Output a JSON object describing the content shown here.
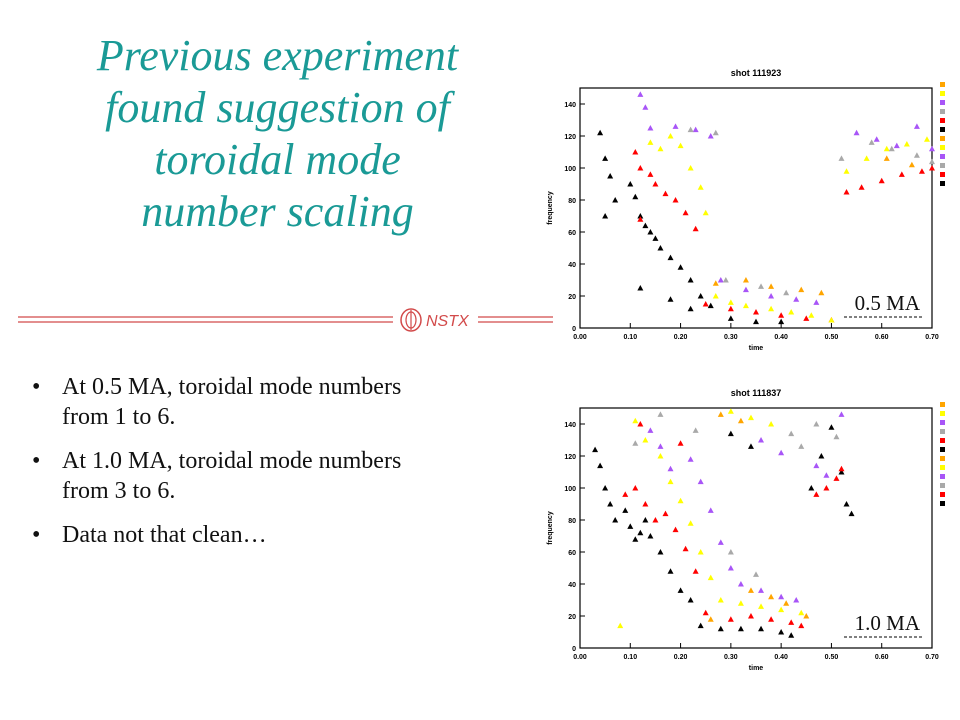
{
  "title": {
    "lines": [
      "Previous experiment",
      "found suggestion of",
      "toroidal mode",
      "number scaling"
    ]
  },
  "logo": {
    "text": "NSTX"
  },
  "bullets": [
    "At 0.5 MA, toroidal mode numbers from 1 to 6.",
    "At 1.0 MA, toroidal mode numbers from 3 to 6.",
    "Data not that clean…"
  ],
  "bullet_symbol": "•",
  "colors": {
    "title": "#1a9a96",
    "n1": "#000000",
    "n2": "#ff0000",
    "n3": "#ffff00",
    "n4": "#a855f7",
    "n5": "#a9a9a9",
    "n6": "#ffa500"
  },
  "chart_data": [
    {
      "type": "scatter",
      "title": "shot 111923",
      "annotation": "0.5 MA",
      "xlabel": "time",
      "ylabel": "frequency",
      "xlim": [
        0.0,
        0.7
      ],
      "ylim": [
        0,
        150
      ],
      "xticks": [
        "0.00",
        "0.10",
        "0.20",
        "0.30",
        "0.40",
        "0.50",
        "0.60",
        "0.70"
      ],
      "yticks": [
        "0",
        "20",
        "40",
        "60",
        "80",
        "100",
        "120",
        "140"
      ],
      "grid": false,
      "legend_position": "right",
      "legend_colors": [
        "#ffa500",
        "#ffff00",
        "#a855f7",
        "#a9a9a9",
        "#ff0000",
        "#000000",
        "#ffa500",
        "#ffff00",
        "#a855f7",
        "#a9a9a9",
        "#ff0000",
        "#000000"
      ],
      "series": [
        {
          "color": "#000000",
          "points": [
            [
              0.04,
              122
            ],
            [
              0.05,
              106
            ],
            [
              0.06,
              95
            ],
            [
              0.07,
              80
            ],
            [
              0.05,
              70
            ],
            [
              0.1,
              90
            ],
            [
              0.11,
              82
            ],
            [
              0.12,
              70
            ],
            [
              0.13,
              64
            ],
            [
              0.14,
              60
            ],
            [
              0.15,
              56
            ],
            [
              0.16,
              50
            ],
            [
              0.18,
              44
            ],
            [
              0.2,
              38
            ],
            [
              0.22,
              30
            ],
            [
              0.24,
              20
            ],
            [
              0.26,
              14
            ],
            [
              0.3,
              6
            ],
            [
              0.35,
              4
            ],
            [
              0.4,
              4
            ],
            [
              0.12,
              25
            ],
            [
              0.18,
              18
            ],
            [
              0.22,
              12
            ]
          ]
        },
        {
          "color": "#ff0000",
          "points": [
            [
              0.11,
              110
            ],
            [
              0.12,
              100
            ],
            [
              0.14,
              96
            ],
            [
              0.15,
              90
            ],
            [
              0.17,
              84
            ],
            [
              0.19,
              80
            ],
            [
              0.21,
              72
            ],
            [
              0.23,
              62
            ],
            [
              0.25,
              15
            ],
            [
              0.3,
              12
            ],
            [
              0.35,
              10
            ],
            [
              0.4,
              8
            ],
            [
              0.45,
              6
            ],
            [
              0.5,
              5
            ],
            [
              0.53,
              85
            ],
            [
              0.56,
              88
            ],
            [
              0.6,
              92
            ],
            [
              0.64,
              96
            ],
            [
              0.68,
              98
            ],
            [
              0.7,
              100
            ],
            [
              0.12,
              68
            ]
          ]
        },
        {
          "color": "#ffff00",
          "points": [
            [
              0.14,
              116
            ],
            [
              0.16,
              112
            ],
            [
              0.18,
              120
            ],
            [
              0.2,
              114
            ],
            [
              0.22,
              100
            ],
            [
              0.24,
              88
            ],
            [
              0.25,
              72
            ],
            [
              0.27,
              20
            ],
            [
              0.3,
              16
            ],
            [
              0.33,
              14
            ],
            [
              0.38,
              12
            ],
            [
              0.42,
              10
            ],
            [
              0.46,
              8
            ],
            [
              0.5,
              5
            ],
            [
              0.53,
              98
            ],
            [
              0.57,
              106
            ],
            [
              0.61,
              112
            ],
            [
              0.65,
              115
            ],
            [
              0.69,
              118
            ]
          ]
        },
        {
          "color": "#a855f7",
          "points": [
            [
              0.12,
              146
            ],
            [
              0.13,
              138
            ],
            [
              0.14,
              125
            ],
            [
              0.19,
              126
            ],
            [
              0.23,
              124
            ],
            [
              0.26,
              120
            ],
            [
              0.28,
              30
            ],
            [
              0.33,
              24
            ],
            [
              0.38,
              20
            ],
            [
              0.43,
              18
            ],
            [
              0.47,
              16
            ],
            [
              0.55,
              122
            ],
            [
              0.59,
              118
            ],
            [
              0.63,
              114
            ],
            [
              0.67,
              126
            ],
            [
              0.7,
              112
            ]
          ]
        },
        {
          "color": "#a9a9a9",
          "points": [
            [
              0.22,
              124
            ],
            [
              0.27,
              122
            ],
            [
              0.29,
              30
            ],
            [
              0.36,
              26
            ],
            [
              0.41,
              22
            ],
            [
              0.52,
              106
            ],
            [
              0.58,
              116
            ],
            [
              0.62,
              112
            ],
            [
              0.67,
              108
            ],
            [
              0.7,
              104
            ]
          ]
        },
        {
          "color": "#ffa500",
          "points": [
            [
              0.27,
              28
            ],
            [
              0.33,
              30
            ],
            [
              0.38,
              26
            ],
            [
              0.44,
              24
            ],
            [
              0.48,
              22
            ],
            [
              0.61,
              106
            ],
            [
              0.66,
              102
            ]
          ]
        }
      ]
    },
    {
      "type": "scatter",
      "title": "shot 111837",
      "annotation": "1.0 MA",
      "xlabel": "time",
      "ylabel": "frequency",
      "xlim": [
        0.0,
        0.7
      ],
      "ylim": [
        0,
        150
      ],
      "xticks": [
        "0.00",
        "0.10",
        "0.20",
        "0.30",
        "0.40",
        "0.50",
        "0.60",
        "0.70"
      ],
      "yticks": [
        "0",
        "20",
        "40",
        "60",
        "80",
        "100",
        "120",
        "140"
      ],
      "grid": false,
      "legend_position": "right",
      "legend_colors": [
        "#ffa500",
        "#ffff00",
        "#a855f7",
        "#a9a9a9",
        "#ff0000",
        "#000000",
        "#ffa500",
        "#ffff00",
        "#a855f7",
        "#a9a9a9",
        "#ff0000",
        "#000000"
      ],
      "series": [
        {
          "color": "#000000",
          "points": [
            [
              0.03,
              124
            ],
            [
              0.04,
              114
            ],
            [
              0.05,
              100
            ],
            [
              0.06,
              90
            ],
            [
              0.07,
              80
            ],
            [
              0.09,
              86
            ],
            [
              0.1,
              76
            ],
            [
              0.11,
              68
            ],
            [
              0.12,
              72
            ],
            [
              0.13,
              80
            ],
            [
              0.14,
              70
            ],
            [
              0.16,
              60
            ],
            [
              0.18,
              48
            ],
            [
              0.2,
              36
            ],
            [
              0.22,
              30
            ],
            [
              0.24,
              14
            ],
            [
              0.28,
              12
            ],
            [
              0.32,
              12
            ],
            [
              0.36,
              12
            ],
            [
              0.4,
              10
            ],
            [
              0.42,
              8
            ],
            [
              0.46,
              100
            ],
            [
              0.48,
              120
            ],
            [
              0.5,
              138
            ],
            [
              0.52,
              110
            ],
            [
              0.53,
              90
            ],
            [
              0.54,
              84
            ],
            [
              0.3,
              134
            ],
            [
              0.34,
              126
            ]
          ]
        },
        {
          "color": "#ff0000",
          "points": [
            [
              0.09,
              96
            ],
            [
              0.11,
              100
            ],
            [
              0.13,
              90
            ],
            [
              0.15,
              80
            ],
            [
              0.17,
              84
            ],
            [
              0.19,
              74
            ],
            [
              0.21,
              62
            ],
            [
              0.23,
              48
            ],
            [
              0.25,
              22
            ],
            [
              0.3,
              18
            ],
            [
              0.34,
              20
            ],
            [
              0.38,
              18
            ],
            [
              0.42,
              16
            ],
            [
              0.44,
              14
            ],
            [
              0.47,
              96
            ],
            [
              0.49,
              100
            ],
            [
              0.51,
              106
            ],
            [
              0.52,
              112
            ],
            [
              0.12,
              140
            ],
            [
              0.2,
              128
            ]
          ]
        },
        {
          "color": "#ffff00",
          "points": [
            [
              0.11,
              142
            ],
            [
              0.13,
              130
            ],
            [
              0.16,
              120
            ],
            [
              0.18,
              104
            ],
            [
              0.2,
              92
            ],
            [
              0.22,
              78
            ],
            [
              0.24,
              60
            ],
            [
              0.26,
              44
            ],
            [
              0.28,
              30
            ],
            [
              0.32,
              28
            ],
            [
              0.36,
              26
            ],
            [
              0.4,
              24
            ],
            [
              0.44,
              22
            ],
            [
              0.3,
              148
            ],
            [
              0.34,
              144
            ],
            [
              0.38,
              140
            ],
            [
              0.08,
              14
            ]
          ]
        },
        {
          "color": "#a855f7",
          "points": [
            [
              0.14,
              136
            ],
            [
              0.16,
              126
            ],
            [
              0.18,
              112
            ],
            [
              0.22,
              118
            ],
            [
              0.24,
              104
            ],
            [
              0.26,
              86
            ],
            [
              0.28,
              66
            ],
            [
              0.3,
              50
            ],
            [
              0.32,
              40
            ],
            [
              0.36,
              36
            ],
            [
              0.4,
              32
            ],
            [
              0.43,
              30
            ],
            [
              0.36,
              130
            ],
            [
              0.4,
              122
            ],
            [
              0.47,
              114
            ],
            [
              0.49,
              108
            ],
            [
              0.52,
              146
            ]
          ]
        },
        {
          "color": "#a9a9a9",
          "points": [
            [
              0.11,
              128
            ],
            [
              0.16,
              146
            ],
            [
              0.23,
              136
            ],
            [
              0.3,
              60
            ],
            [
              0.35,
              46
            ],
            [
              0.42,
              134
            ],
            [
              0.44,
              126
            ],
            [
              0.47,
              140
            ],
            [
              0.51,
              132
            ]
          ]
        },
        {
          "color": "#ffa500",
          "points": [
            [
              0.28,
              146
            ],
            [
              0.32,
              142
            ],
            [
              0.34,
              36
            ],
            [
              0.38,
              32
            ],
            [
              0.41,
              28
            ],
            [
              0.26,
              18
            ],
            [
              0.45,
              20
            ]
          ]
        }
      ]
    }
  ]
}
